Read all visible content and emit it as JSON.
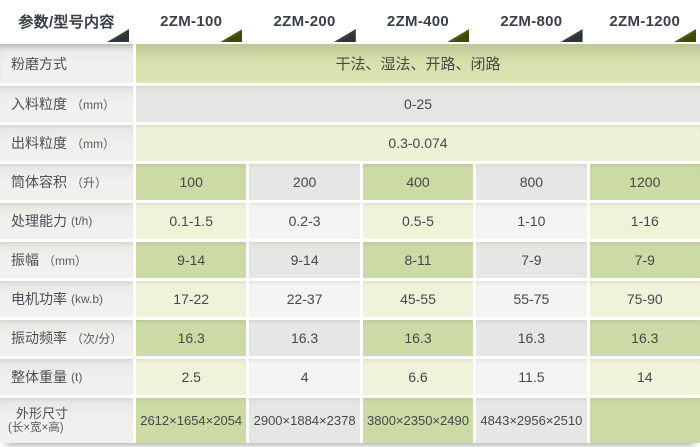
{
  "colors": {
    "accent_green_cell_dark": "#ccdaa5",
    "accent_green_cell_light": "#eff3d9",
    "accent_green_row": "#d4dfac",
    "gray_cell_dark": "#e6e6e4",
    "gray_cell_light": "#f4f4f2",
    "label_column_bg": "#efefed",
    "header_text": "#3b4045",
    "triangle_dark": "#2e3337",
    "triangle_green": "#5c6a12",
    "body_text": "#45494c"
  },
  "table": {
    "header": {
      "param_col": "参数/型号内容",
      "models": [
        "2ZM-100",
        "2ZM-200",
        "2ZM-400",
        "2ZM-800",
        "2ZM-1200"
      ]
    },
    "rows": [
      {
        "label": "粉磨方式",
        "unit": "",
        "style": "span-green",
        "value": "干法、湿法、开路、闭路"
      },
      {
        "label": "入料粒度",
        "unit": "（mm）",
        "style": "span-gray",
        "value": "0-25"
      },
      {
        "label": "出料粒度",
        "unit": "（mm）",
        "style": "span-lgreen",
        "value": "0.3-0.074"
      },
      {
        "label": "筒体容积",
        "unit": "（升）",
        "style": "dark",
        "values": [
          "100",
          "200",
          "400",
          "800",
          "1200"
        ]
      },
      {
        "label": "处理能力",
        "unit": "(t/h)",
        "style": "light",
        "values": [
          "0.1-1.5",
          "0.2-3",
          "0.5-5",
          "1-10",
          "1-16"
        ]
      },
      {
        "label": "振幅",
        "unit": "（mm）",
        "style": "dark",
        "values": [
          "9-14",
          "9-14",
          "8-11",
          "7-9",
          "7-9"
        ]
      },
      {
        "label": "电机功率",
        "unit": "(kw.b)",
        "style": "light",
        "values": [
          "17-22",
          "22-37",
          "45-55",
          "55-75",
          "75-90"
        ]
      },
      {
        "label": "振动频率",
        "unit": "（次/分）",
        "style": "dark",
        "values": [
          "16.3",
          "16.3",
          "16.3",
          "16.3",
          "16.3"
        ]
      },
      {
        "label": "整体重量",
        "unit": "(t)",
        "style": "light",
        "values": [
          "2.5",
          "4",
          "6.6",
          "11.5",
          "14"
        ]
      },
      {
        "label": "外形尺寸",
        "unit": "(长×宽×高)",
        "style": "dark",
        "two_line": true,
        "tall": true,
        "values": [
          "2612×1654×2054",
          "2900×1884×2378",
          "3800×2350×2490",
          "4843×2956×2510",
          ""
        ]
      }
    ]
  }
}
